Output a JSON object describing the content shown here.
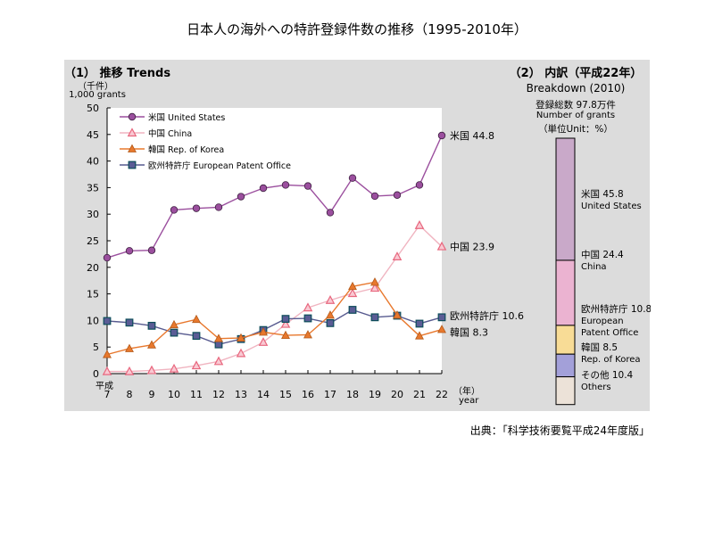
{
  "title": "日本人の海外への特許登録件数の推移（1995-2010年）",
  "source": "出典：「科学技術要覧平成24年度版」",
  "colors": {
    "panel_bg": "#dcdcdc",
    "plot_bg": "#ffffff",
    "us": "#9b4f9e",
    "china": "#e8677e",
    "china_line": "#f0b4c0",
    "korea": "#e8782d",
    "epo": "#575a8f",
    "epo_marker": "#5a5c95",
    "bar_us": "#c9a9c9",
    "bar_china": "#ebb3d1",
    "bar_epo": "#f8dc96",
    "bar_korea": "#a3a0d9",
    "bar_others": "#ece2d8"
  },
  "trends": {
    "section_label": "（1）  推移 Trends",
    "unit_jp": "（千件）",
    "unit_en": "1,000 grants",
    "era_label": "平成",
    "x_unit_jp": "（年）",
    "x_unit_en": "year"
  },
  "breakdown": {
    "section_label": "（2）  内訳（平成22年）",
    "subtitle": "Breakdown (2010)",
    "total_jp": "登録総数 97.8万件",
    "total_en": "Number of grants",
    "unit": "（単位Unit：%）",
    "segments": [
      {
        "key": "us",
        "label_jp": "米国 45.8",
        "label_en": "United States",
        "value": 45.8
      },
      {
        "key": "china",
        "label_jp": "中国 24.4",
        "label_en": "China",
        "value": 24.4
      },
      {
        "key": "epo",
        "label_jp": "欧州特許庁 10.8",
        "label_en": "European Patent Office",
        "value": 10.8
      },
      {
        "key": "korea",
        "label_jp": "韓国 8.5",
        "label_en": "Rep. of Korea",
        "value": 8.5
      },
      {
        "key": "others",
        "label_jp": "その他 10.4",
        "label_en": "Others",
        "value": 10.4
      }
    ]
  },
  "chart_data": [
    {
      "type": "line",
      "title": "（1） 推移 Trends",
      "xlabel": "平成（年） year",
      "ylabel": "（千件） 1,000 grants",
      "x": [
        7,
        8,
        9,
        10,
        11,
        12,
        13,
        14,
        15,
        16,
        17,
        18,
        19,
        20,
        21,
        22
      ],
      "ylim": [
        0,
        50
      ],
      "yticks": [
        0,
        5,
        10,
        15,
        20,
        25,
        30,
        35,
        40,
        45,
        50
      ],
      "grid": false,
      "legend_position": "top-left",
      "series": [
        {
          "key": "us",
          "name": "米国 United States",
          "marker": "circle",
          "values": [
            21.8,
            23.1,
            23.2,
            30.8,
            31.1,
            31.3,
            33.3,
            34.9,
            35.5,
            35.3,
            30.3,
            36.8,
            33.4,
            33.6,
            35.5,
            44.8
          ],
          "end_label": "米国 44.8"
        },
        {
          "key": "china",
          "name": "中国 China",
          "marker": "triangle-open",
          "values": [
            0.4,
            0.4,
            0.6,
            0.9,
            1.5,
            2.3,
            3.8,
            5.9,
            9.3,
            12.4,
            13.8,
            15.1,
            16.1,
            22.0,
            27.9,
            23.9
          ],
          "end_label": "中国 23.9"
        },
        {
          "key": "korea",
          "name": "韓国 Rep. of Korea",
          "marker": "triangle",
          "values": [
            3.6,
            4.7,
            5.4,
            9.2,
            10.2,
            6.6,
            6.7,
            7.8,
            7.2,
            7.3,
            11.0,
            16.4,
            17.2,
            11.0,
            7.1,
            8.3
          ],
          "end_label": "韓国 8.3"
        },
        {
          "key": "epo",
          "name": "欧州特許庁 European Patent Office",
          "marker": "square",
          "values": [
            9.9,
            9.6,
            9.0,
            7.7,
            7.1,
            5.5,
            6.5,
            8.2,
            10.3,
            10.4,
            9.5,
            12.0,
            10.6,
            10.9,
            9.4,
            10.6
          ],
          "end_label": "欧州特許庁  10.6"
        }
      ]
    },
    {
      "type": "bar",
      "stacked": true,
      "title": "（2） 内訳（平成22年） Breakdown (2010)",
      "subtitle": "登録総数 97.8万件 Number of grants（単位Unit：%）",
      "categories": [
        "米国 United States",
        "中国 China",
        "欧州特許庁 European Patent Office",
        "韓国 Rep. of Korea",
        "その他 Others"
      ],
      "values": [
        45.8,
        24.4,
        10.8,
        8.5,
        10.4
      ],
      "ylim": [
        0,
        100
      ]
    }
  ]
}
